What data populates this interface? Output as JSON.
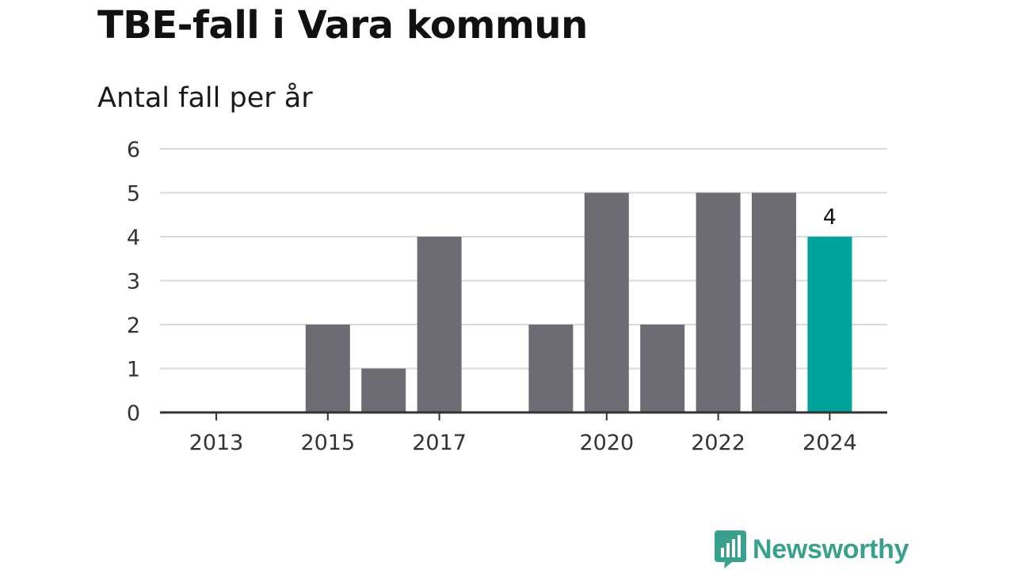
{
  "title": "TBE-fall i Vara kommun",
  "subtitle": "Antal fall per år",
  "brand": {
    "name": "Newsworthy",
    "icon": "bar-chart-speech-bubble-icon",
    "color": "#3aa08e"
  },
  "colors": {
    "bar": "#6d6c73",
    "highlight": "#00a39a",
    "grid": "#d9d9d9",
    "axis": "#333333"
  },
  "chart_data": {
    "type": "bar",
    "categories": [
      "2013",
      "2014",
      "2015",
      "2016",
      "2017",
      "2018",
      "2019",
      "2020",
      "2021",
      "2022",
      "2023",
      "2024"
    ],
    "values": [
      0,
      0,
      2,
      1,
      4,
      0,
      2,
      5,
      2,
      5,
      5,
      4
    ],
    "x_tick_labels": [
      "2013",
      "2015",
      "2017",
      "2020",
      "2022",
      "2024"
    ],
    "y_ticks": [
      0,
      1,
      2,
      3,
      4,
      5,
      6
    ],
    "ylim": [
      0,
      6
    ],
    "highlight_category": "2024",
    "data_labels": [
      {
        "category": "2024",
        "text": "4"
      }
    ],
    "grid": true,
    "title": "TBE-fall i Vara kommun",
    "ylabel": "Antal fall per år",
    "xlabel": ""
  }
}
